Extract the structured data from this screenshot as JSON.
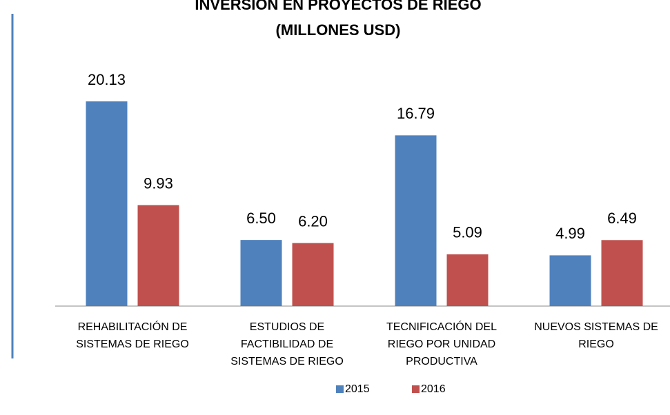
{
  "chart_data": {
    "type": "bar",
    "title": "INVERSIÓN EN PROYECTOS DE RIEGO",
    "subtitle": "(MILLONES  USD)",
    "categories": [
      [
        "REHABILITACIÓN DE",
        "SISTEMAS DE RIEGO"
      ],
      [
        "ESTUDIOS DE",
        "FACTIBILIDAD DE",
        "SISTEMAS DE RIEGO"
      ],
      [
        "TECNIFICACIÓN DEL",
        "RIEGO POR UNIDAD",
        "PRODUCTIVA"
      ],
      [
        "NUEVOS SISTEMAS DE",
        "RIEGO"
      ]
    ],
    "series": [
      {
        "name": "2015",
        "color": "#4f81bd",
        "values": [
          20.13,
          6.5,
          16.79,
          4.99
        ],
        "value_labels": [
          "20.13",
          "6.50",
          "16.79",
          "4.99"
        ]
      },
      {
        "name": "2016",
        "color": "#c0504d",
        "values": [
          9.93,
          6.2,
          5.09,
          6.49
        ],
        "value_labels": [
          "9.93",
          "6.20",
          "5.09",
          "6.49"
        ]
      }
    ],
    "ylim": [
      0,
      22
    ]
  }
}
